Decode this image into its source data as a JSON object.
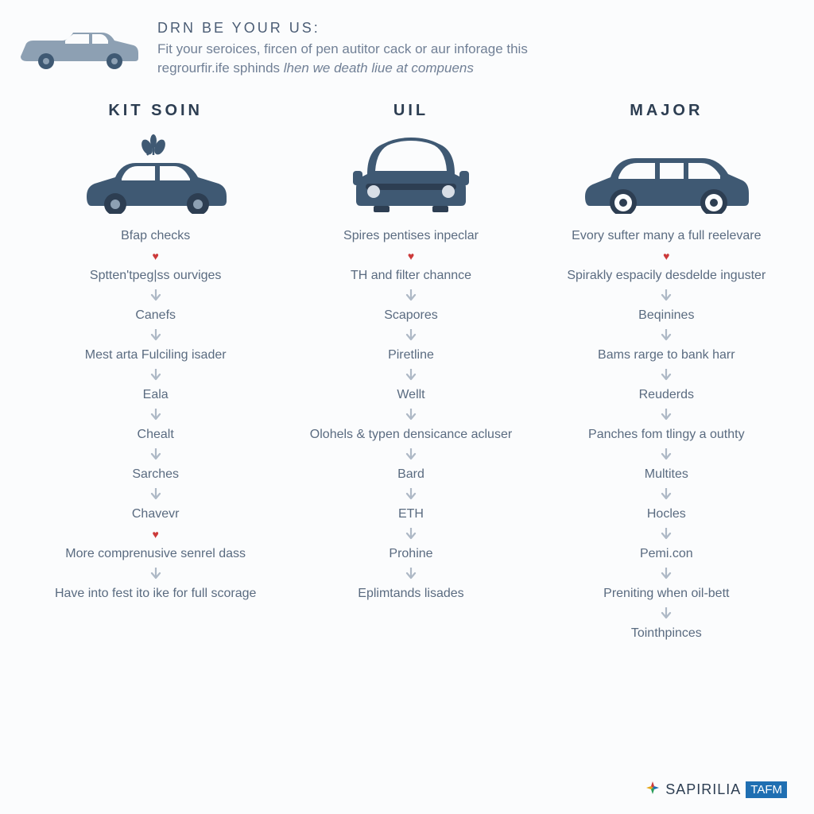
{
  "colors": {
    "car_body": "#3f5973",
    "car_body_light": "#8da0b3",
    "text_primary": "#2d3e52",
    "text_secondary": "#5a6b80",
    "text_muted": "#718096",
    "arrow": "#aeb9c6",
    "heart": "#cc3a3a",
    "background": "#fbfcfd",
    "badge_bg": "#1f6fb2",
    "badge_text": "#ffffff"
  },
  "header": {
    "title": "DRN BE YOUR US:",
    "line1_a": "Fit your seroices, fircen of pen autitor cack or aur inforage this",
    "line2_a": "regrourfir.ife sphinds ",
    "line2_b": "lhen we death liue at compuens"
  },
  "columns": [
    {
      "title": "KIT SOIN",
      "icon": "car-side-plant",
      "items": [
        "Bfap checks",
        "Sptten'tpeg|ss ourviges",
        "Canefs",
        "Mest arta Fulciling isader",
        "Eala",
        "Chealt",
        "Sarches",
        "Chavevr",
        "More comprenusive senrel dass",
        "Have into fest ito ike for full scorage"
      ],
      "separators": [
        "arrow",
        "heart",
        "arrow",
        "arrow",
        "arrow",
        "arrow",
        "arrow",
        "arrow",
        "heart",
        "arrow"
      ]
    },
    {
      "title": "UIL",
      "icon": "car-front",
      "items": [
        "Spires pentises inpeclar",
        "TH and filter channce",
        "Scapores",
        "Piretline",
        "Wellt",
        "Olohels & typen densicance acluser",
        "Bard",
        "ETH",
        "Prohine",
        "Eplimtands lisades"
      ],
      "separators": [
        "arrow",
        "heart",
        "arrow",
        "arrow",
        "arrow",
        "arrow",
        "arrow",
        "arrow",
        "arrow",
        "arrow"
      ]
    },
    {
      "title": "MAJOR",
      "icon": "car-side-wagon",
      "items": [
        "Evory sufter many a full reelevare",
        "Spirakly espacily desdelde inguster",
        "Beqinines",
        "Bams rarge to bank harr",
        "Reuderds",
        "Panches fom tlingy a outhty",
        "Multites",
        "Hocles",
        "Pemi.con",
        "Preniting when oil-bett",
        "Tointhpinces"
      ],
      "separators": [
        "arrow",
        "heart",
        "arrow",
        "arrow",
        "arrow",
        "arrow",
        "arrow",
        "arrow",
        "arrow",
        "arrow",
        "arrow"
      ]
    }
  ],
  "footer": {
    "brand": "SAPIRILIA",
    "badge": "TAFM"
  }
}
